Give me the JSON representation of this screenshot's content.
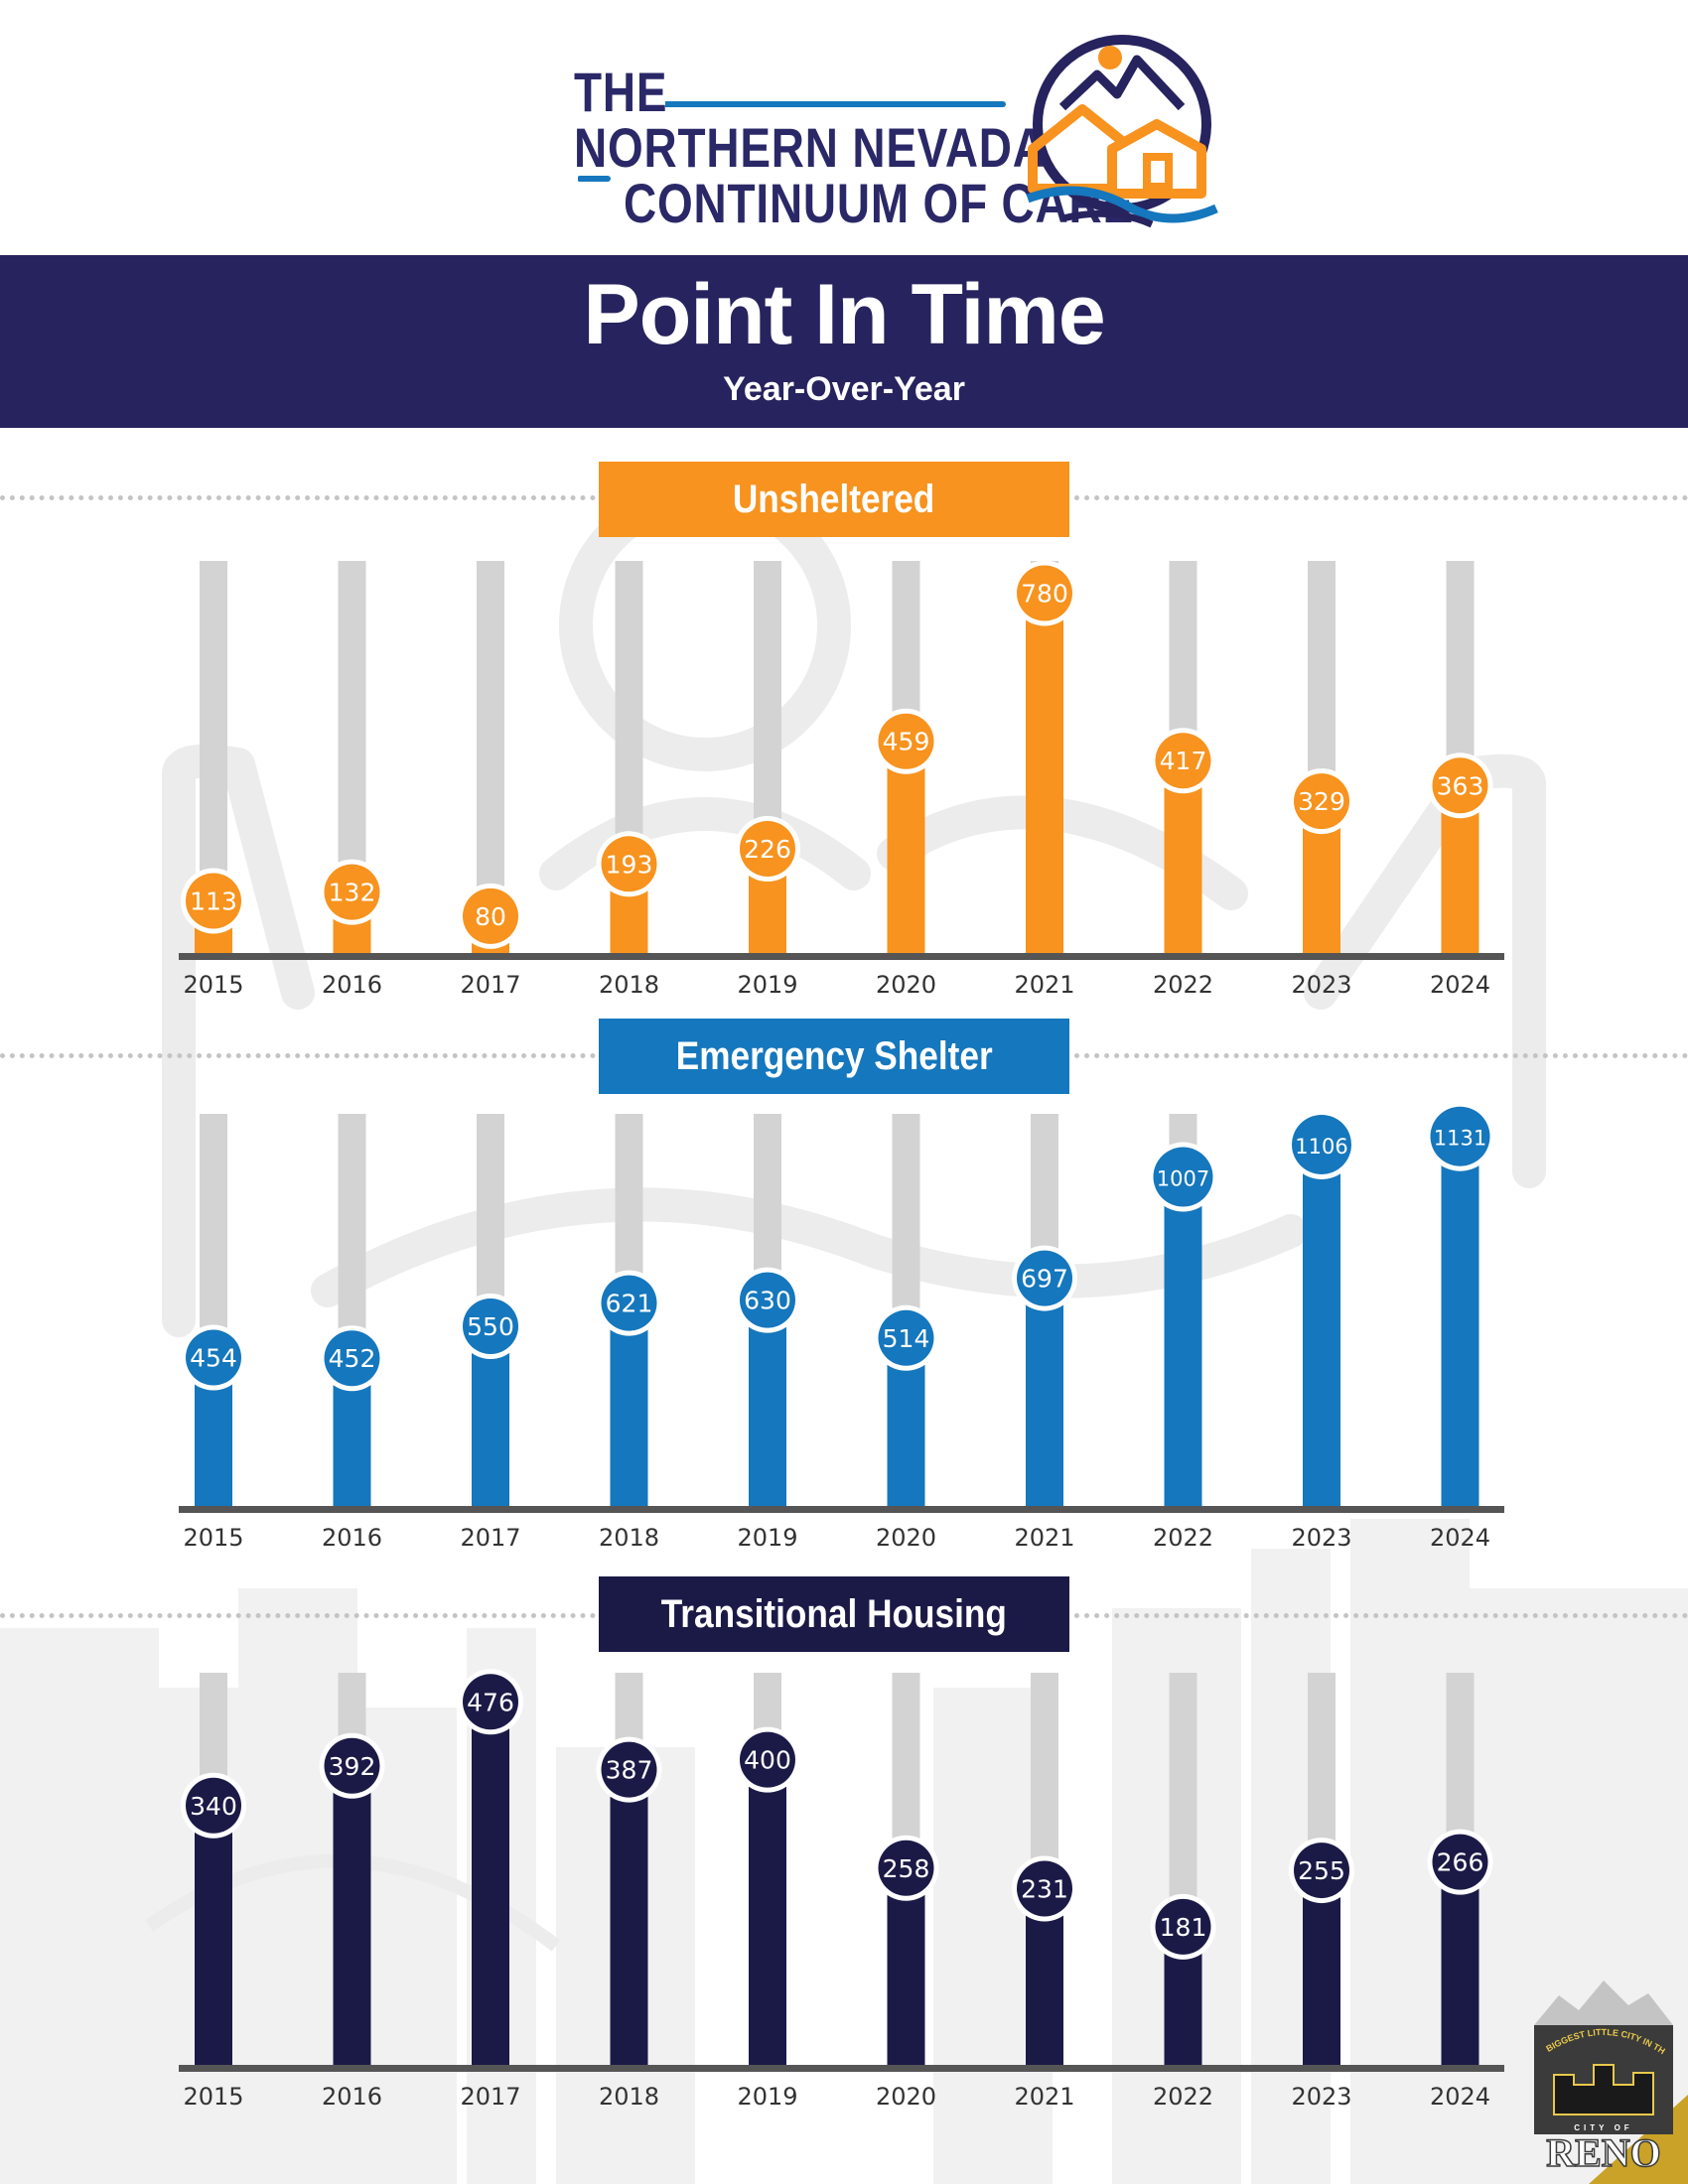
{
  "header": {
    "logo_lines": [
      "THE",
      "NORTHERN NEVADA",
      "CONTINUUM OF CARE"
    ],
    "title": "Point In Time",
    "subtitle": "Year-Over-Year"
  },
  "colors": {
    "navy": "#27235e",
    "orange": "#f7931e",
    "blue": "#1577bd",
    "dark_navy": "#1b1a47",
    "track_gray": "#d3d3d3",
    "axis_gray": "#555555"
  },
  "footer_logo": {
    "text": "RENO",
    "motto": "BIGGEST LITTLE CITY IN THE WORLD",
    "city_label": "CITY OF"
  },
  "chart_data": [
    {
      "type": "bar",
      "title": "Unsheltered",
      "color": "#f7931e",
      "categories": [
        "2015",
        "2016",
        "2017",
        "2018",
        "2019",
        "2020",
        "2021",
        "2022",
        "2023",
        "2024"
      ],
      "values": [
        113,
        132,
        80,
        193,
        226,
        459,
        780,
        417,
        329,
        363
      ],
      "ylim": [
        0,
        850
      ],
      "grid": false
    },
    {
      "type": "bar",
      "title": "Emergency Shelter",
      "color": "#1577bd",
      "categories": [
        "2015",
        "2016",
        "2017",
        "2018",
        "2019",
        "2020",
        "2021",
        "2022",
        "2023",
        "2024"
      ],
      "values": [
        454,
        452,
        550,
        621,
        630,
        514,
        697,
        1007,
        1106,
        1131
      ],
      "ylim": [
        0,
        1200
      ],
      "grid": false
    },
    {
      "type": "bar",
      "title": "Transitional Housing",
      "color": "#1b1a47",
      "categories": [
        "2015",
        "2016",
        "2017",
        "2018",
        "2019",
        "2020",
        "2021",
        "2022",
        "2023",
        "2024"
      ],
      "values": [
        340,
        392,
        476,
        387,
        400,
        258,
        231,
        181,
        255,
        266
      ],
      "grid": false
    }
  ]
}
